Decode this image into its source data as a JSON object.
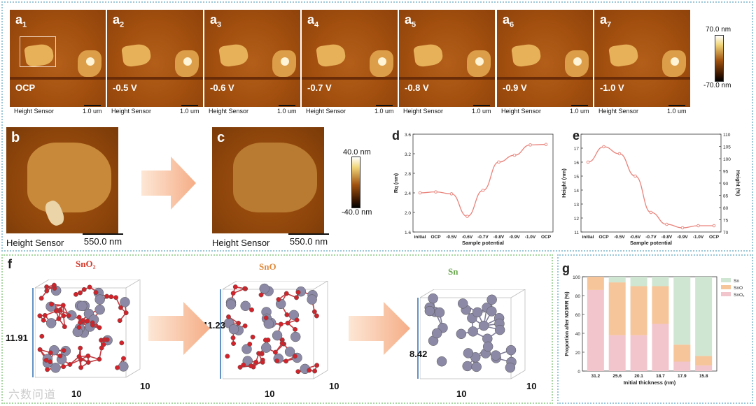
{
  "afm_row": {
    "panels": [
      {
        "label": "a",
        "sub": "1",
        "potential": "OCP"
      },
      {
        "label": "a",
        "sub": "2",
        "potential": "-0.5 V"
      },
      {
        "label": "a",
        "sub": "3",
        "potential": "-0.6 V"
      },
      {
        "label": "a",
        "sub": "4",
        "potential": "-0.7 V"
      },
      {
        "label": "a",
        "sub": "5",
        "potential": "-0.8 V"
      },
      {
        "label": "a",
        "sub": "6",
        "potential": "-0.9 V"
      },
      {
        "label": "a",
        "sub": "7",
        "potential": "-1.0 V"
      }
    ],
    "caption": "Height Sensor",
    "scale_bar": "1.0 um",
    "colorbar_max": "70.0 nm",
    "colorbar_min": "-70.0 nm"
  },
  "panel_b": {
    "label": "b",
    "caption": "Height Sensor",
    "scale_bar": "550.0 nm"
  },
  "panel_c": {
    "label": "c",
    "caption": "Height Sensor",
    "scale_bar": "550.0 nm",
    "colorbar_max": "40.0 nm",
    "colorbar_min": "-40.0 nm"
  },
  "chart_data": [
    {
      "panel": "d",
      "type": "line",
      "categories": [
        "initial",
        "OCP",
        "-0.5V",
        "-0.6V",
        "-0.7V",
        "-0.8V",
        "-0.9V",
        "-1.0V",
        "OCP"
      ],
      "values": [
        2.4,
        2.42,
        2.38,
        1.92,
        2.45,
        3.03,
        3.17,
        3.38,
        3.39
      ],
      "xlabel": "Sample potential",
      "ylabel": "Rq (nm)",
      "ylim": [
        1.6,
        3.6
      ],
      "yticks": [
        "1.6",
        "2.0",
        "2.4",
        "2.8",
        "3.2",
        "3.6"
      ],
      "color": "#e9827a"
    },
    {
      "panel": "e",
      "type": "line",
      "categories": [
        "initial",
        "OCP",
        "-0.5V",
        "-0.6V",
        "-0.7V",
        "-0.8V",
        "-0.9V",
        "-1.0V",
        "OCP"
      ],
      "values": [
        16.0,
        17.1,
        16.6,
        15.0,
        12.4,
        11.55,
        11.3,
        11.45,
        11.45
      ],
      "xlabel": "Sample potential",
      "ylabel": "Height (nm)",
      "y2label": "Height (%)",
      "ylim": [
        11,
        18
      ],
      "yticks": [
        "11",
        "12",
        "13",
        "14",
        "15",
        "16",
        "17",
        "18"
      ],
      "y2ticks": [
        "70",
        "75",
        "80",
        "85",
        "90",
        "95",
        "100",
        "105",
        "110"
      ],
      "color": "#e9827a"
    },
    {
      "panel": "g",
      "type": "bar",
      "categories": [
        "31.2",
        "25.6",
        "20.1",
        "18.7",
        "17.9",
        "15.8"
      ],
      "series": [
        {
          "name": "Sn",
          "values": [
            0,
            6,
            10,
            10,
            72,
            84
          ],
          "color": "#cfe6d2"
        },
        {
          "name": "SnO",
          "values": [
            14,
            56,
            52,
            40,
            18,
            10
          ],
          "color": "#f6c59a"
        },
        {
          "name": "SnO2",
          "values": [
            86,
            38,
            38,
            50,
            10,
            6
          ],
          "color": "#f2c5cc"
        }
      ],
      "xlabel": "Initial thickness (nm)",
      "ylabel": "Proportion after NO3RR (%)",
      "ylim": [
        0,
        100
      ],
      "yticks": [
        "0",
        "20",
        "40",
        "60",
        "80",
        "100"
      ]
    }
  ],
  "panel_d": {
    "label": "d"
  },
  "panel_e": {
    "label": "e"
  },
  "panel_f": {
    "label": "f",
    "structures": [
      {
        "title": "SnO₂",
        "height": "11.91",
        "depth": "10",
        "width": "10",
        "title_color": "#d43a2c"
      },
      {
        "title": "SnO",
        "height": "11.23",
        "depth": "10",
        "width": "10",
        "title_color": "#e08a3c"
      },
      {
        "title": "Sn",
        "height": "8.42",
        "depth": "10",
        "width": "10",
        "title_color": "#6aa84f"
      }
    ]
  },
  "panel_g": {
    "label": "g",
    "legend": [
      "Sn",
      "SnO",
      "SnO₂"
    ]
  },
  "watermark": "六数问道"
}
